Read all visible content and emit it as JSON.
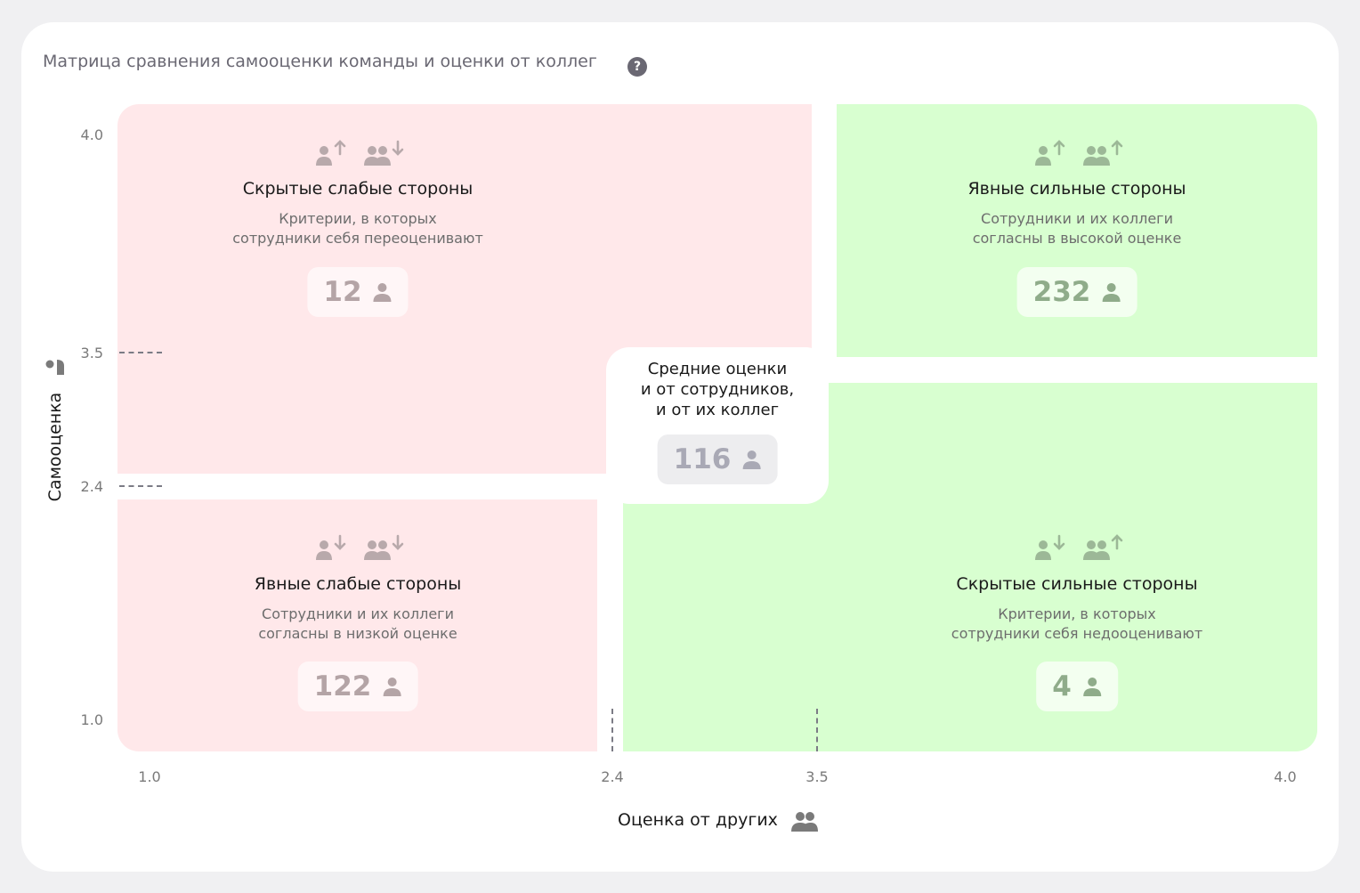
{
  "title": "Матрица сравнения самооценки команды и оценки от коллег",
  "help_icon": "question-mark-icon",
  "colors": {
    "weakness_zone": "#ffe8ea",
    "strength_zone": "#d8ffd0",
    "dash": "#7b7b85"
  },
  "axes": {
    "y_label": "Самооценка",
    "x_label": "Оценка от других",
    "y_ticks": [
      "4.0",
      "3.5",
      "2.4",
      "1.0"
    ],
    "x_ticks": [
      "1.0",
      "2.4",
      "3.5",
      "4.0"
    ],
    "y_icon": "self-person-icon",
    "x_icon": "group-people-icon"
  },
  "quadrants": {
    "hidden_weak": {
      "title": "Скрытые слабые стороны",
      "desc_line1": "Критерии, в которых",
      "desc_line2": "сотрудники себя переоценивают",
      "count": "12",
      "self_trend": "up",
      "others_trend": "down"
    },
    "explicit_strong": {
      "title": "Явные сильные стороны",
      "desc_line1": "Сотрудники и их коллеги",
      "desc_line2": "согласны в высокой оценке",
      "count": "232",
      "self_trend": "up",
      "others_trend": "up"
    },
    "explicit_weak": {
      "title": "Явные слабые стороны",
      "desc_line1": "Сотрудники и их коллеги",
      "desc_line2": "согласны в низкой оценке",
      "count": "122",
      "self_trend": "down",
      "others_trend": "down"
    },
    "hidden_strong": {
      "title": "Скрытые сильные стороны",
      "desc_line1": "Критерии, в которых",
      "desc_line2": "сотрудники себя недооценивают",
      "count": "4",
      "self_trend": "down",
      "others_trend": "up"
    }
  },
  "middle": {
    "line1": "Средние оценки",
    "line2": "и от сотрудников,",
    "line3": "и от их коллег",
    "count": "116"
  }
}
